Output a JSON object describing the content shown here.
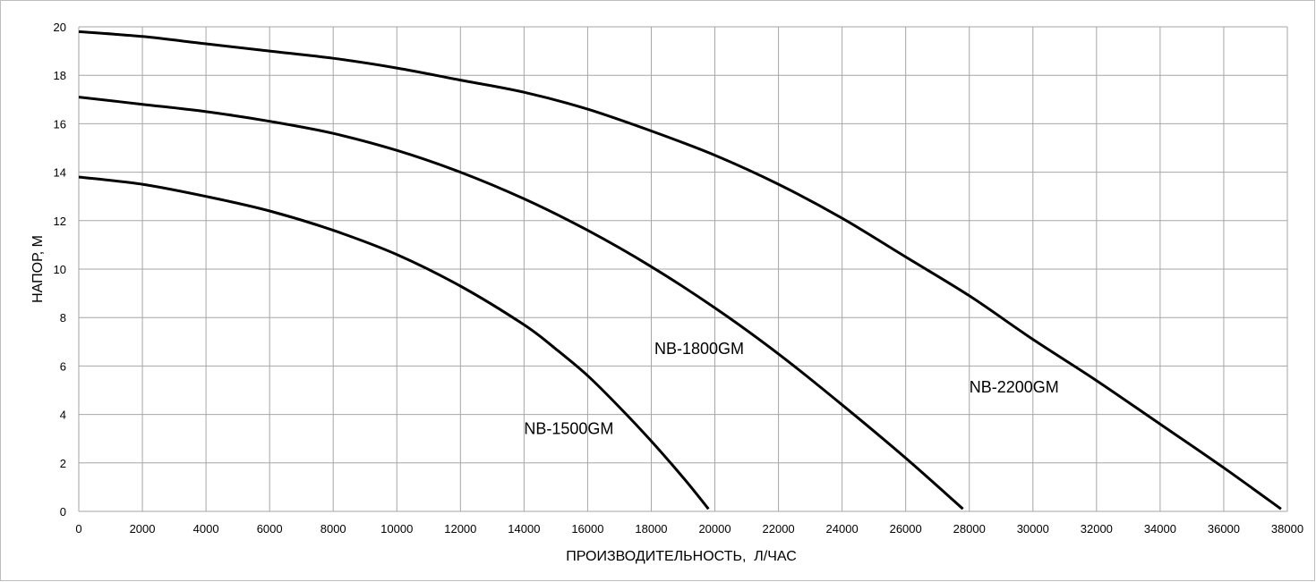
{
  "chart_data": {
    "type": "line",
    "title": "",
    "xlabel": "ПРОИЗВОДИТЕЛЬНОСТЬ,  Л/ЧАС",
    "ylabel": "НАПОР, М",
    "xlim": [
      0,
      38000
    ],
    "ylim": [
      0,
      20
    ],
    "x_ticks": [
      "0",
      "2000",
      "4000",
      "6000",
      "8000",
      "10000",
      "12000",
      "14000",
      "16000",
      "18000",
      "20000",
      "22000",
      "24000",
      "26000",
      "28000",
      "30000",
      "32000",
      "34000",
      "36000",
      "38000"
    ],
    "y_ticks": [
      "0",
      "2",
      "4",
      "6",
      "8",
      "10",
      "12",
      "14",
      "16",
      "18",
      "20"
    ],
    "grid": true,
    "legend": "none",
    "series": [
      {
        "name": "NB-1500GM",
        "label_at": [
          14000,
          3.2
        ],
        "x": [
          0,
          2000,
          4000,
          6000,
          8000,
          10000,
          12000,
          14000,
          15000,
          16000,
          17000,
          18000,
          19000,
          19800
        ],
        "values": [
          13.8,
          13.5,
          13.0,
          12.4,
          11.6,
          10.6,
          9.3,
          7.7,
          6.7,
          5.6,
          4.3,
          2.9,
          1.4,
          0.1
        ]
      },
      {
        "name": "NB-1800GM",
        "label_at": [
          18100,
          6.5
        ],
        "x": [
          0,
          2000,
          4000,
          6000,
          8000,
          10000,
          12000,
          14000,
          16000,
          18000,
          20000,
          22000,
          24000,
          26000,
          27800
        ],
        "values": [
          17.1,
          16.8,
          16.5,
          16.1,
          15.6,
          14.9,
          14.0,
          12.9,
          11.6,
          10.1,
          8.4,
          6.5,
          4.4,
          2.2,
          0.1
        ]
      },
      {
        "name": "NB-2200GM",
        "label_at": [
          28000,
          4.9
        ],
        "x": [
          0,
          2000,
          4000,
          6000,
          8000,
          10000,
          12000,
          14000,
          16000,
          18000,
          20000,
          22000,
          24000,
          26000,
          28000,
          30000,
          32000,
          34000,
          36000,
          37800
        ],
        "values": [
          19.8,
          19.6,
          19.3,
          19.0,
          18.7,
          18.3,
          17.8,
          17.3,
          16.6,
          15.7,
          14.7,
          13.5,
          12.1,
          10.5,
          8.9,
          7.1,
          5.4,
          3.6,
          1.8,
          0.1
        ]
      }
    ]
  }
}
